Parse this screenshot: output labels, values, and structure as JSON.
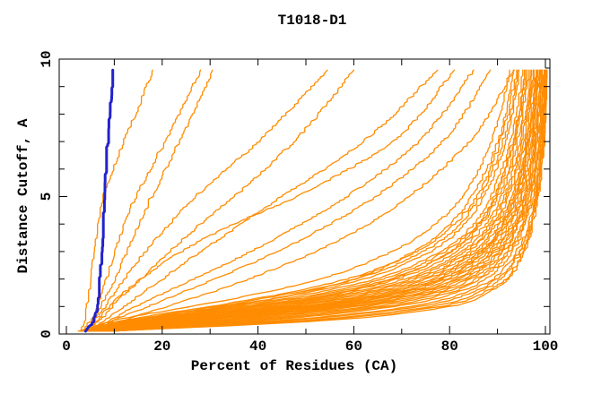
{
  "page": {
    "background": "#ffffff"
  },
  "chart_data": {
    "type": "line",
    "title": "T1018-D1",
    "xlabel": "Percent of Residues (CA)",
    "ylabel": "Distance Cutoff, A",
    "xlim": [
      -1.5,
      101
    ],
    "ylim": [
      0,
      10
    ],
    "grid": false,
    "legend": "none",
    "x_ticks": {
      "labeled": [
        0,
        20,
        40,
        60,
        80,
        100
      ],
      "minor_step": 10
    },
    "y_ticks": {
      "labeled": [
        0,
        5,
        10
      ],
      "minor_step": 1
    },
    "colors": {
      "models": "#ff8c00",
      "highlighted": "#2222cc",
      "frame": "#000000"
    },
    "cutoff_knots": [
      0.1,
      0.5,
      1,
      1.5,
      2,
      3,
      4,
      5,
      7,
      9.6
    ],
    "highlighted_model": {
      "color": "#2222cc",
      "line_width": 3,
      "percents": [
        4,
        5.5,
        6.2,
        6.5,
        6.8,
        7.1,
        7.4,
        7.7,
        8.4,
        9.5
      ]
    },
    "models": {
      "color": "#ff8c00",
      "line_width": 1.3,
      "series": [
        [
          3,
          3.6,
          4.1,
          4.5,
          4.9,
          5.6,
          6.4,
          7.5,
          12,
          18
        ],
        [
          3.5,
          5,
          6.2,
          7.2,
          8.2,
          10,
          12,
          14.5,
          20.5,
          28
        ],
        [
          4,
          5.5,
          7,
          8.5,
          10,
          12.5,
          15,
          17.8,
          23.5,
          30.5
        ],
        [
          4,
          6,
          8,
          10,
          12,
          16.5,
          21.5,
          27,
          40,
          54.5
        ],
        [
          4.5,
          7,
          9.5,
          12.5,
          15.5,
          21.5,
          28,
          35,
          47.5,
          60
        ],
        [
          4.5,
          8,
          12,
          16,
          20,
          28,
          36.5,
          45,
          62,
          77.5
        ],
        [
          4,
          6.5,
          9,
          12,
          15.5,
          24,
          35,
          48,
          68,
          81
        ],
        [
          5,
          9,
          14.5,
          20.5,
          26.5,
          38.5,
          49,
          58.5,
          73.5,
          85
        ],
        [
          5,
          10,
          17,
          24,
          31,
          44,
          55,
          64.5,
          78.5,
          88.5
        ],
        [
          5.5,
          12,
          21,
          30,
          38,
          52,
          63,
          71.5,
          84,
          93.5
        ],
        [
          2.5,
          10,
          26,
          41,
          53,
          68,
          77,
          82.5,
          88.5,
          92.5
        ],
        [
          3,
          12,
          30,
          46,
          58.5,
          73,
          81,
          85.5,
          90.5,
          94
        ],
        [
          3,
          13,
          33,
          50,
          62,
          76,
          83,
          87,
          91.5,
          94.5
        ],
        [
          3.5,
          14,
          35,
          52,
          64.5,
          78,
          85,
          88.5,
          92.5,
          95.2
        ],
        [
          3.5,
          15,
          36.5,
          54,
          66,
          79,
          85.8,
          89.2,
          93,
          95.6
        ],
        [
          4,
          16,
          38,
          55.5,
          67.5,
          80.2,
          86.6,
          90,
          93.6,
          96
        ],
        [
          4,
          17,
          39.5,
          57.5,
          69,
          81.5,
          87.5,
          90.6,
          94,
          96.4
        ],
        [
          4.5,
          18,
          41,
          59,
          70.5,
          82.5,
          88.2,
          91.2,
          94.5,
          96.8
        ],
        [
          4.5,
          19,
          42.5,
          60.5,
          71.8,
          83.2,
          88.8,
          91.7,
          94.9,
          97
        ],
        [
          5,
          20,
          44,
          62,
          73,
          84,
          89.3,
          92.2,
          95.2,
          97.3
        ],
        [
          5,
          21,
          45.5,
          63.5,
          74.2,
          84.8,
          89.9,
          92.7,
          95.6,
          97.5
        ],
        [
          5.5,
          22,
          47,
          65,
          75.2,
          85.5,
          90.4,
          93.1,
          95.9,
          97.8
        ],
        [
          5.5,
          23,
          48.5,
          66.2,
          76.2,
          86.2,
          90.9,
          93.5,
          96.2,
          98
        ],
        [
          6,
          24,
          50,
          67.5,
          77.2,
          86.8,
          91.4,
          93.9,
          96.5,
          98.2
        ],
        [
          6,
          25,
          51.5,
          68.8,
          78.2,
          87.4,
          91.8,
          94.3,
          96.8,
          98.4
        ],
        [
          6.5,
          26.5,
          53,
          70,
          79.2,
          88,
          92.2,
          94.6,
          97,
          98.6
        ],
        [
          6.5,
          28,
          54.5,
          71.2,
          80.2,
          88.6,
          92.7,
          95,
          97.3,
          98.8
        ],
        [
          7,
          29.5,
          56,
          72.5,
          81,
          89.2,
          93.1,
          95.3,
          97.5,
          99
        ],
        [
          7,
          31,
          57.5,
          73.6,
          81.9,
          89.7,
          93.5,
          95.6,
          97.7,
          99.1
        ],
        [
          7.5,
          32.5,
          59,
          74.8,
          82.8,
          90.2,
          93.8,
          95.9,
          97.9,
          99.3
        ],
        [
          7.5,
          34,
          60.5,
          76,
          83.6,
          90.7,
          94.2,
          96.2,
          98.1,
          99.4
        ],
        [
          8,
          36,
          62.5,
          77.2,
          84.5,
          91.2,
          94.5,
          96.4,
          98.3,
          99.5
        ],
        [
          8,
          38,
          64.5,
          78.5,
          85.5,
          91.8,
          94.9,
          96.7,
          98.5,
          99.6
        ],
        [
          8.5,
          40,
          66.5,
          80,
          86.5,
          92.4,
          95.3,
          97,
          98.7,
          99.7
        ],
        [
          8.5,
          42,
          68.5,
          81.3,
          87.5,
          93,
          95.7,
          97.3,
          98.9,
          99.8
        ],
        [
          9,
          45,
          72,
          83,
          89,
          94,
          96.3,
          97.6,
          99,
          100
        ],
        [
          9,
          47,
          73.5,
          84.5,
          89.8,
          94.4,
          96.6,
          97.8,
          99.1,
          99.8
        ],
        [
          9.5,
          50,
          76,
          86,
          90.5,
          94.8,
          96.8,
          98,
          99.3,
          100
        ],
        [
          9.5,
          52,
          78,
          87,
          91.5,
          95.2,
          97,
          98.1,
          99.4,
          100
        ],
        [
          9,
          55,
          80,
          88,
          92,
          95.5,
          97.2,
          98.3,
          99.5,
          100
        ],
        [
          4,
          15.5,
          34,
          49,
          60,
          72.5,
          80,
          84.5,
          90,
          93.2
        ],
        [
          5,
          18.5,
          40,
          57,
          68,
          80,
          86,
          89.5,
          93.2,
          95.8
        ],
        [
          6.5,
          27,
          52,
          69,
          78.5,
          87,
          91,
          93.6,
          96.3,
          98.1
        ],
        [
          3.5,
          13.5,
          31.5,
          47.5,
          60.5,
          74.5,
          82,
          86.2,
          91,
          94.2
        ]
      ]
    }
  }
}
